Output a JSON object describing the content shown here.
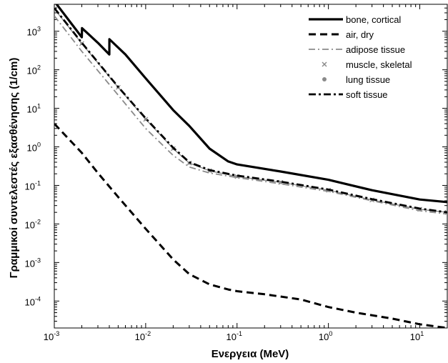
{
  "chart_data": {
    "type": "line",
    "xlabel": "Ενεργεια (MeV)",
    "ylabel": "Γραμμικοί συντελεστές εξασθένησης (1/cm)",
    "x_scale": "log",
    "y_scale": "log",
    "xlim": [
      0.001,
      20
    ],
    "ylim": [
      2e-05,
      5000
    ],
    "x_ticks": [
      {
        "value": 0.001,
        "base": "10",
        "exp": "-3"
      },
      {
        "value": 0.01,
        "base": "10",
        "exp": "-2"
      },
      {
        "value": 0.1,
        "base": "10",
        "exp": "-1"
      },
      {
        "value": 1,
        "base": "10",
        "exp": "0"
      },
      {
        "value": 10,
        "base": "10",
        "exp": "1"
      }
    ],
    "y_ticks": [
      {
        "value": 0.0001,
        "base": "10",
        "exp": "-4"
      },
      {
        "value": 0.001,
        "base": "10",
        "exp": "-3"
      },
      {
        "value": 0.01,
        "base": "10",
        "exp": "-2"
      },
      {
        "value": 0.1,
        "base": "10",
        "exp": "-1"
      },
      {
        "value": 1,
        "base": "10",
        "exp": "0"
      },
      {
        "value": 10,
        "base": "10",
        "exp": "1"
      },
      {
        "value": 100,
        "base": "10",
        "exp": "2"
      },
      {
        "value": 1000,
        "base": "10",
        "exp": "3"
      }
    ],
    "grid": false,
    "legend_position": "top-right",
    "series": [
      {
        "name": "bone, cortical",
        "style": "solid",
        "color": "#000000",
        "x": [
          0.001,
          0.002,
          0.00201,
          0.003,
          0.004,
          0.00401,
          0.006,
          0.01,
          0.02,
          0.03,
          0.05,
          0.08,
          0.1,
          0.3,
          1,
          3,
          10,
          20
        ],
        "y": [
          6000,
          700,
          1200,
          500,
          250,
          620,
          250,
          60,
          9,
          3.5,
          0.9,
          0.42,
          0.35,
          0.23,
          0.14,
          0.075,
          0.043,
          0.037
        ]
      },
      {
        "name": "air, dry",
        "style": "dashed",
        "color": "#000000",
        "x": [
          0.001,
          0.002,
          0.003,
          0.005,
          0.01,
          0.02,
          0.03,
          0.05,
          0.08,
          0.1,
          0.2,
          0.5,
          1,
          2,
          5,
          10,
          20
        ],
        "y": [
          4,
          0.7,
          0.21,
          0.05,
          0.0075,
          0.0012,
          0.0005,
          0.00027,
          0.0002,
          0.00018,
          0.00015,
          0.00011,
          7e-05,
          5e-05,
          3.5e-05,
          2.5e-05,
          2e-05
        ]
      },
      {
        "name": "adipose tissue",
        "style": "dashdot-gray",
        "color": "#888888",
        "x": [
          0.001,
          0.002,
          0.005,
          0.01,
          0.02,
          0.03,
          0.05,
          0.1,
          0.3,
          1,
          3,
          10,
          20
        ],
        "y": [
          2500,
          300,
          22,
          3,
          0.6,
          0.3,
          0.21,
          0.16,
          0.11,
          0.07,
          0.04,
          0.022,
          0.018
        ]
      },
      {
        "name": "muscle, skeletal",
        "style": "marker-x",
        "color": "#888888",
        "x": [
          0.001,
          0.002,
          0.005,
          0.01,
          0.02,
          0.03,
          0.05,
          0.1,
          0.3,
          1,
          3,
          10,
          20
        ],
        "y": [
          3800,
          480,
          35,
          5.2,
          0.9,
          0.38,
          0.24,
          0.17,
          0.12,
          0.075,
          0.042,
          0.024,
          0.02
        ]
      },
      {
        "name": "lung tissue",
        "style": "marker-dot",
        "color": "#888888",
        "x": [
          0.001,
          0.002,
          0.005,
          0.01,
          0.02,
          0.03,
          0.05,
          0.1,
          0.3,
          1,
          3,
          10,
          20
        ],
        "y": [
          3800,
          480,
          35,
          5.2,
          0.9,
          0.38,
          0.24,
          0.17,
          0.12,
          0.075,
          0.042,
          0.024,
          0.02
        ]
      },
      {
        "name": "soft tissue",
        "style": "dashdot-black",
        "color": "#000000",
        "x": [
          0.001,
          0.002,
          0.005,
          0.01,
          0.02,
          0.03,
          0.05,
          0.1,
          0.3,
          1,
          3,
          10,
          20
        ],
        "y": [
          4000,
          500,
          36,
          5.5,
          0.95,
          0.4,
          0.25,
          0.18,
          0.125,
          0.078,
          0.044,
          0.025,
          0.02
        ]
      }
    ]
  }
}
